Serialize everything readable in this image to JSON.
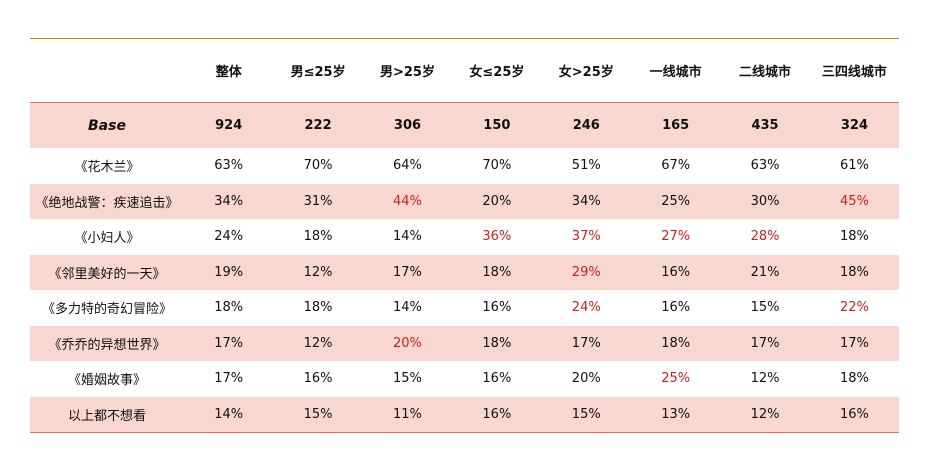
{
  "columns": [
    "整体",
    "男≤25岁",
    "男>25岁",
    "女≤25岁",
    "女>25岁",
    "一线城市",
    "二线城市",
    "三四线城市"
  ],
  "base": {
    "label": "Base",
    "values": [
      "924",
      "222",
      "306",
      "150",
      "246",
      "165",
      "435",
      "324"
    ]
  },
  "rows": [
    {
      "label": "《花木兰》",
      "values": [
        "63%",
        "70%",
        "64%",
        "70%",
        "51%",
        "67%",
        "63%",
        "61%"
      ],
      "highlight": [
        false,
        false,
        false,
        false,
        false,
        false,
        false,
        false
      ]
    },
    {
      "label": "《绝地战警：疾速追击》",
      "values": [
        "34%",
        "31%",
        "44%",
        "20%",
        "34%",
        "25%",
        "30%",
        "45%"
      ],
      "highlight": [
        false,
        false,
        true,
        false,
        false,
        false,
        false,
        true
      ]
    },
    {
      "label": "《小妇人》",
      "values": [
        "24%",
        "18%",
        "14%",
        "36%",
        "37%",
        "27%",
        "28%",
        "18%"
      ],
      "highlight": [
        false,
        false,
        false,
        true,
        true,
        true,
        true,
        false
      ]
    },
    {
      "label": "《邻里美好的一天》",
      "values": [
        "19%",
        "12%",
        "17%",
        "18%",
        "29%",
        "16%",
        "21%",
        "18%"
      ],
      "highlight": [
        false,
        false,
        false,
        false,
        true,
        false,
        false,
        false
      ]
    },
    {
      "label": "《多力特的奇幻冒险》",
      "values": [
        "18%",
        "18%",
        "14%",
        "16%",
        "24%",
        "16%",
        "15%",
        "22%"
      ],
      "highlight": [
        false,
        false,
        false,
        false,
        true,
        false,
        false,
        true
      ]
    },
    {
      "label": "《乔乔的异想世界》",
      "values": [
        "17%",
        "12%",
        "20%",
        "18%",
        "17%",
        "18%",
        "17%",
        "17%"
      ],
      "highlight": [
        false,
        false,
        true,
        false,
        false,
        false,
        false,
        false
      ]
    },
    {
      "label": "《婚姻故事》",
      "values": [
        "17%",
        "16%",
        "15%",
        "16%",
        "20%",
        "25%",
        "12%",
        "18%"
      ],
      "highlight": [
        false,
        false,
        false,
        false,
        false,
        true,
        false,
        false
      ]
    },
    {
      "label": "以上都不想看",
      "values": [
        "14%",
        "15%",
        "11%",
        "16%",
        "15%",
        "13%",
        "12%",
        "16%"
      ],
      "highlight": [
        false,
        false,
        false,
        false,
        false,
        false,
        false,
        false
      ]
    }
  ],
  "colors": {
    "shaded_row": "#f8d7d1",
    "highlight_text": "#cc1f1f",
    "top_rule": "#b8860b",
    "row_rule": "#e07060"
  }
}
